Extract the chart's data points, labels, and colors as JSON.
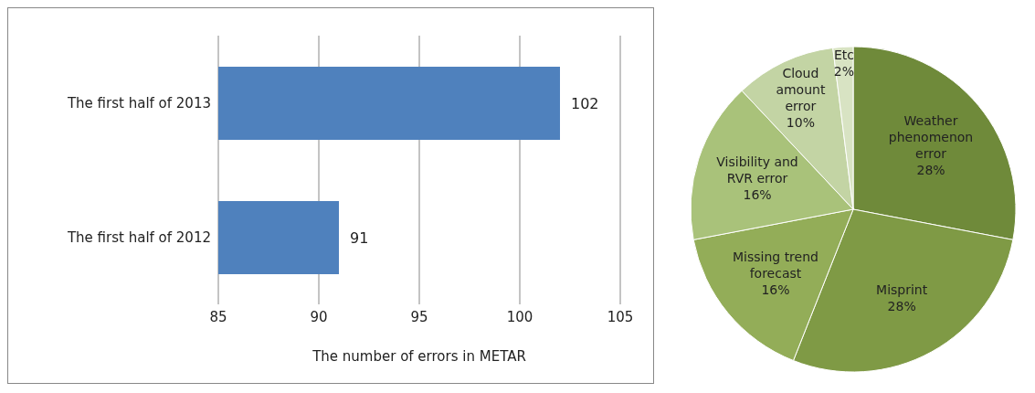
{
  "chart_data": [
    {
      "type": "bar",
      "orientation": "horizontal",
      "categories": [
        "The first half of 2013",
        "The first half of 2012"
      ],
      "values": [
        102,
        91
      ],
      "color": "#4f81bd",
      "xlim": [
        85,
        105
      ],
      "xticks": [
        85,
        90,
        95,
        100,
        105
      ],
      "xlabel": "The number of  errors in METAR",
      "grid": "x",
      "data_labels": true
    },
    {
      "type": "pie",
      "categories": [
        "Weather phenomenon error",
        "Misprint",
        "Missing trend forecast",
        "Visibility and RVR error",
        "Cloud amount error",
        "Etc"
      ],
      "values": [
        28,
        28,
        16,
        16,
        10,
        2
      ],
      "colors": [
        "#6f8a3a",
        "#7f9a45",
        "#93ad58",
        "#a9c27a",
        "#c3d4a4",
        "#d8e3c3"
      ],
      "value_labels": [
        "28%",
        "28%",
        "16%",
        "16%",
        "10%",
        "2%"
      ]
    }
  ]
}
